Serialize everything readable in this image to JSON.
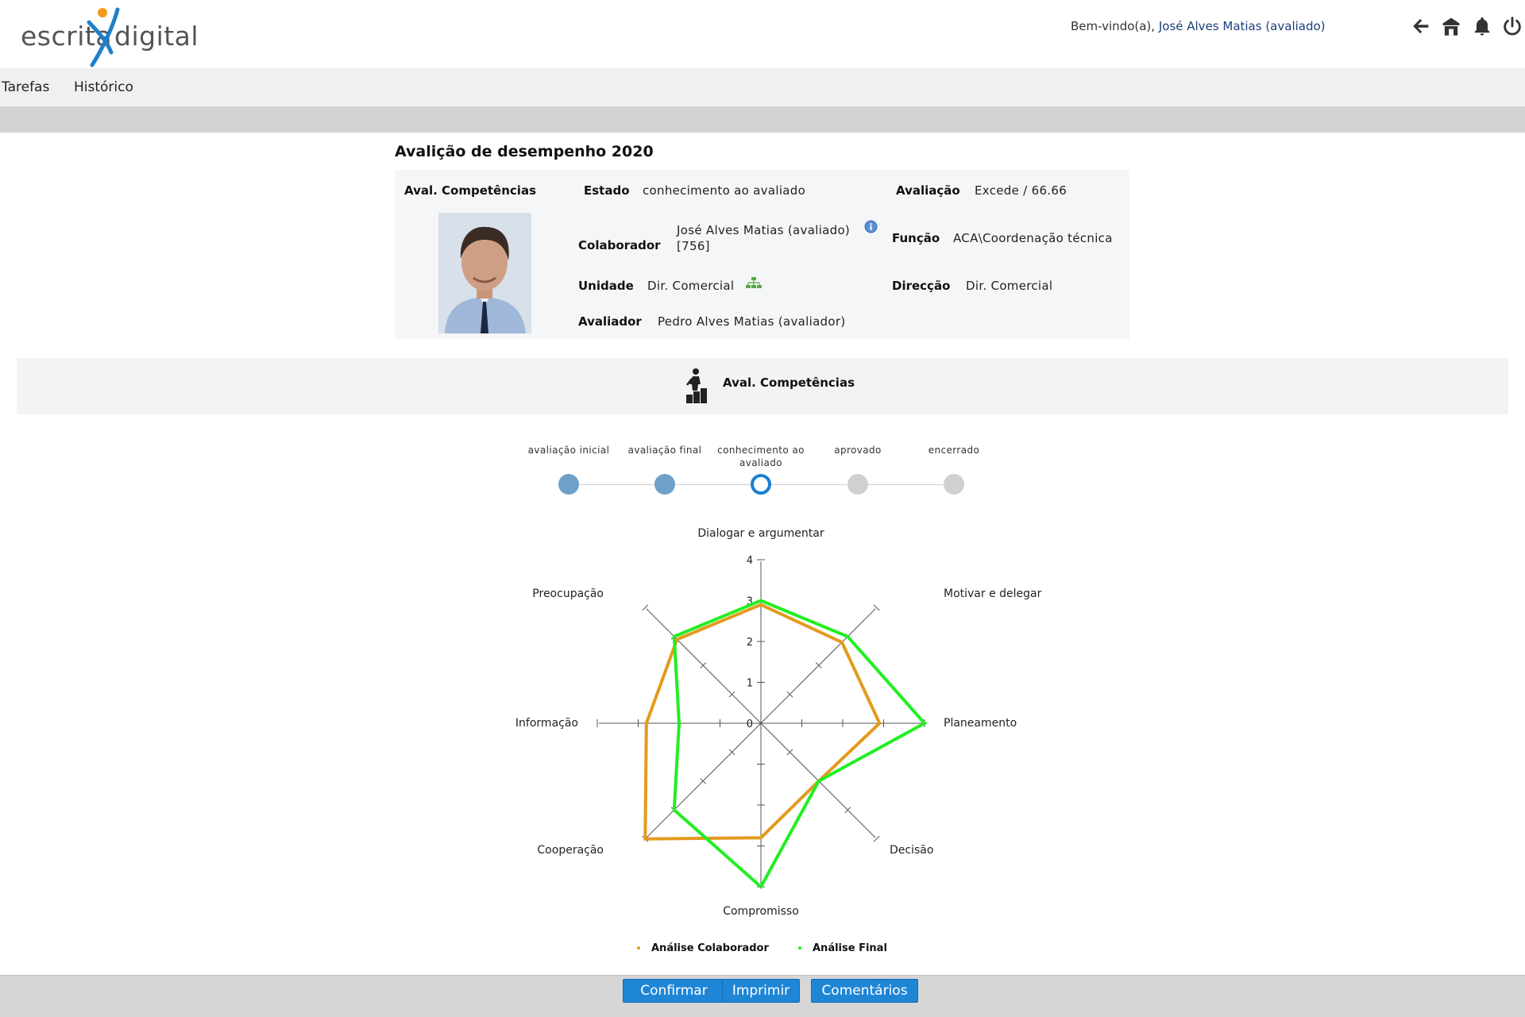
{
  "header": {
    "logo_left": "escrita",
    "logo_right": "digital",
    "welcome_prefix": "Bem-vindo(a),",
    "welcome_user": "José Alves Matias (avaliado)",
    "icons": [
      "back-arrow-icon",
      "home-icon",
      "bell-icon",
      "power-icon"
    ]
  },
  "nav": {
    "items": [
      "Tarefas",
      "Histórico"
    ]
  },
  "page": {
    "title": "Avalição de desempenho 2020"
  },
  "info": {
    "section_label": "Aval. Competências",
    "estado_label": "Estado",
    "estado_value": "conhecimento ao avaliado",
    "avaliacao_label": "Avaliação",
    "avaliacao_value": "Excede / 66.66",
    "colaborador_label": "Colaborador",
    "colaborador_name": "José Alves Matias (avaliado)",
    "colaborador_id": "[756]",
    "funcao_label": "Função",
    "funcao_value": "ACA\\Coordenação técnica",
    "unidade_label": "Unidade",
    "unidade_value": "Dir. Comercial",
    "direccao_label": "Direcção",
    "direccao_value": "Dir. Comercial",
    "avaliador_label": "Avaliador",
    "avaliador_value": "Pedro Alves Matias (avaliador)"
  },
  "section": {
    "title": "Aval. Competências"
  },
  "stepper": {
    "steps": [
      {
        "label": "avaliação inicial",
        "state": "done"
      },
      {
        "label": "avaliação final",
        "state": "done"
      },
      {
        "label": "conhecimento ao avaliado",
        "state": "current"
      },
      {
        "label": "aprovado",
        "state": "pending"
      },
      {
        "label": "encerrado",
        "state": "pending"
      }
    ],
    "colors": {
      "done": "#6ea0c9",
      "current": "#1a7fd4",
      "pending": "#d0d0d0"
    }
  },
  "chart_data": {
    "type": "radar",
    "axes": [
      "Dialogar e argumentar",
      "Motivar e delegar",
      "Planeamento",
      "Decisão",
      "Compromisso",
      "Cooperação",
      "Informação",
      "Preocupação"
    ],
    "range": [
      0,
      4
    ],
    "ticks": [
      "0",
      "1",
      "2",
      "3",
      "4"
    ],
    "series": [
      {
        "name": "Análise Colaborador",
        "color": "#e39a1e",
        "values": [
          2.9,
          2.8,
          2.9,
          2.0,
          2.8,
          4.0,
          2.8,
          2.9
        ]
      },
      {
        "name": "Análise Final",
        "color": "#22ee22",
        "values": [
          3.0,
          3.0,
          4.0,
          2.0,
          4.0,
          3.0,
          2.0,
          3.0
        ]
      }
    ],
    "legend_position": "bottom"
  },
  "footer": {
    "buttons": [
      "Confirmar",
      "Imprimir",
      "Comentários"
    ]
  }
}
